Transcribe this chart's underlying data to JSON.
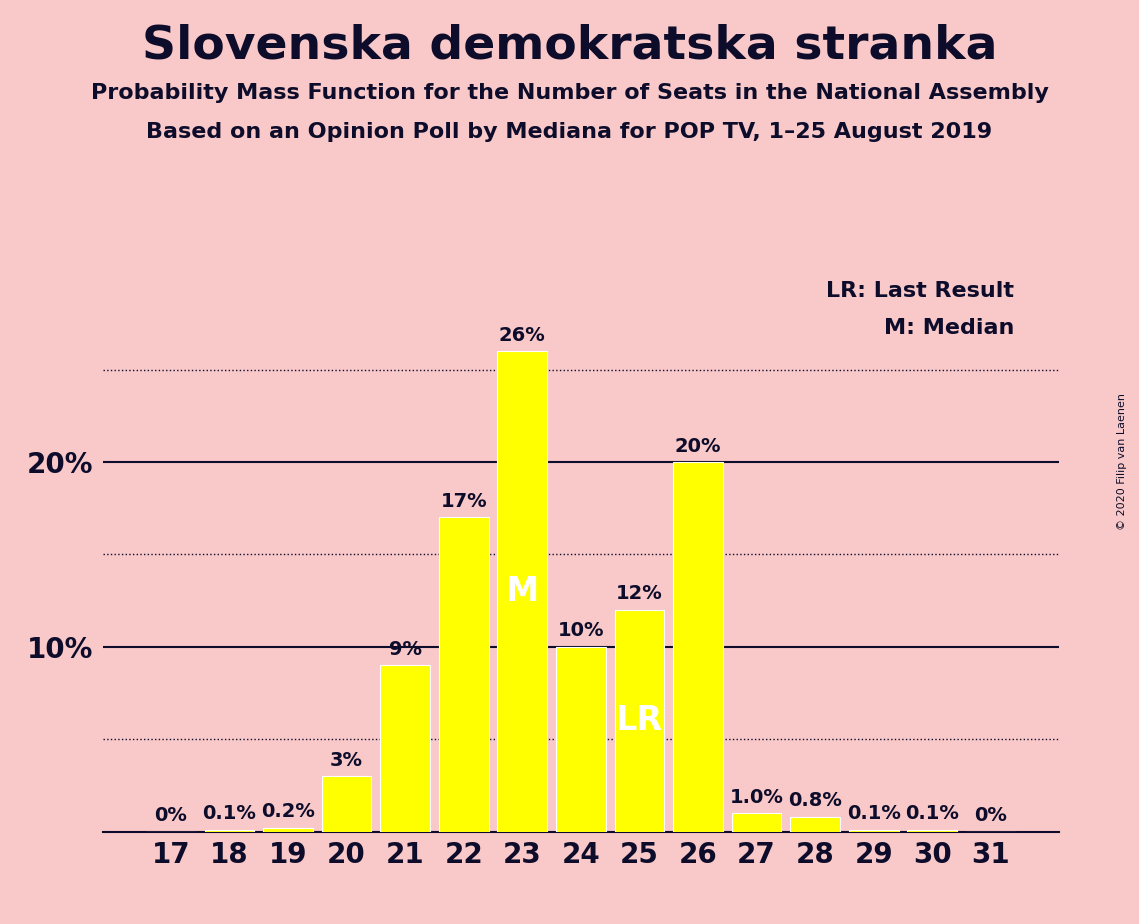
{
  "title": "Slovenska demokratska stranka",
  "subtitle1": "Probability Mass Function for the Number of Seats in the National Assembly",
  "subtitle2": "Based on an Opinion Poll by Mediana for POP TV, 1–25 August 2019",
  "copyright": "© 2020 Filip van Laenen",
  "categories": [
    17,
    18,
    19,
    20,
    21,
    22,
    23,
    24,
    25,
    26,
    27,
    28,
    29,
    30,
    31
  ],
  "values": [
    0.0,
    0.1,
    0.2,
    3.0,
    9.0,
    17.0,
    26.0,
    10.0,
    12.0,
    20.0,
    1.0,
    0.8,
    0.1,
    0.1,
    0.0
  ],
  "labels": [
    "0%",
    "0.1%",
    "0.2%",
    "3%",
    "9%",
    "17%",
    "26%",
    "10%",
    "12%",
    "20%",
    "1.0%",
    "0.8%",
    "0.1%",
    "0.1%",
    "0%"
  ],
  "bar_color": "#FFFF00",
  "background_color": "#F9C8C8",
  "text_color": "#0D0D2B",
  "bar_edge_color": "#FFFFFF",
  "median_seat": 23,
  "lr_seat": 25,
  "median_label": "M",
  "lr_label": "LR",
  "legend_lr": "LR: Last Result",
  "legend_m": "M: Median",
  "hlines_solid": [
    10,
    20
  ],
  "hlines_dotted": [
    5,
    15,
    25
  ],
  "ylim": [
    0,
    30
  ],
  "title_fontsize": 34,
  "subtitle_fontsize": 16,
  "label_fontsize": 14,
  "tick_fontsize": 20,
  "legend_fontsize": 16,
  "inside_label_fontsize": 24
}
